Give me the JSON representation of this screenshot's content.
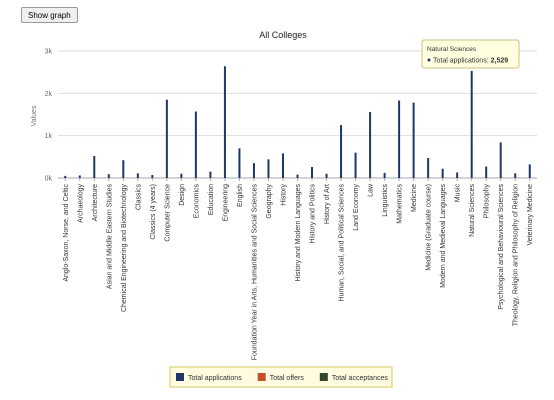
{
  "button": "Show graph",
  "chart_data": {
    "type": "bar",
    "title": "All Colleges",
    "y_label": "Values",
    "categories": [
      "Anglo-Saxon, Norse, and Celtic",
      "Archaeology",
      "Architecture",
      "Asian and Middle Eastern Studies",
      "Chemical Engineering and Biotechnology",
      "Classics",
      "Classics (4 years)",
      "Computer Science",
      "Design",
      "Economics",
      "Education",
      "Engineering",
      "English",
      "Foundation Year in Arts, Humanities and Social Sciences",
      "Geography",
      "History",
      "History and Modern Languages",
      "History and Politics",
      "History of Art",
      "Human, Social, and Political Sciences",
      "Land Economy",
      "Law",
      "Linguistics",
      "Mathematics",
      "Medicine",
      "Medicine (Graduate course)",
      "Modern and Medieval Languages",
      "Music",
      "Natural Sciences",
      "Philosophy",
      "Psychological and Behavioural Sciences",
      "Theology, Religion and Philosophy of Religion",
      "Veterinary Medicine"
    ],
    "series": [
      {
        "name": "Total applications",
        "color": "#1c3768",
        "values": [
          50,
          60,
          520,
          90,
          420,
          110,
          70,
          1850,
          100,
          1570,
          150,
          2640,
          700,
          350,
          440,
          580,
          80,
          260,
          100,
          1250,
          600,
          1560,
          120,
          1830,
          1780,
          470,
          220,
          130,
          2529,
          270,
          840,
          110,
          320
        ]
      },
      {
        "name": "Total offers",
        "color": "#c4502a"
      },
      {
        "name": "Total acceptances",
        "color": "#2f4a2f"
      }
    ],
    "ylim": [
      0,
      3000
    ],
    "yticks": [
      {
        "value": 0,
        "label": "0k"
      },
      {
        "value": 1000,
        "label": "1k"
      },
      {
        "value": 2000,
        "label": "2k"
      },
      {
        "value": 3000,
        "label": "3k"
      }
    ],
    "grid": true,
    "legend": "bottom",
    "tooltip": {
      "title": "Natural Sciences",
      "label": "Total applications:",
      "value": "2,529"
    }
  }
}
